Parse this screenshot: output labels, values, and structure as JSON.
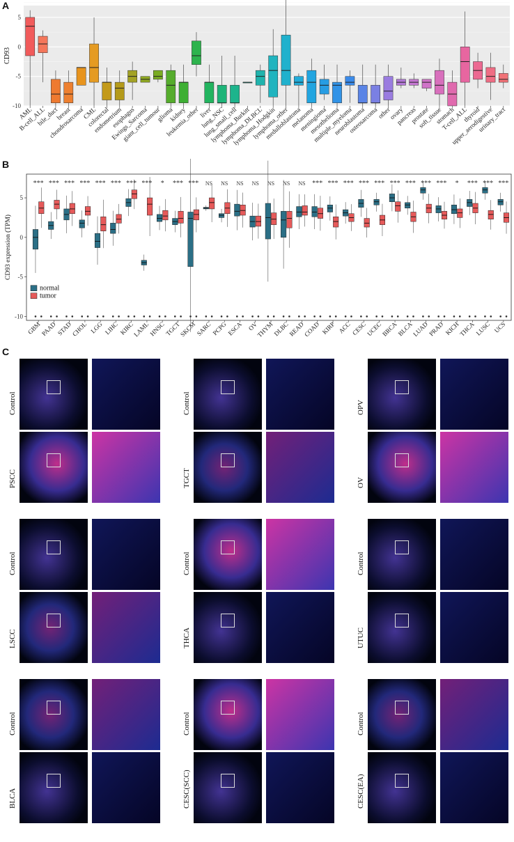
{
  "figure": {
    "panels": [
      "A",
      "B",
      "C"
    ]
  },
  "chart_data": [
    {
      "id": "A",
      "type": "boxplot",
      "ylabel": "CD93",
      "ylim": [
        -10,
        7
      ],
      "yticks": [
        5,
        0,
        -5,
        -10
      ],
      "categories": [
        {
          "name": "AML",
          "q1": -1.5,
          "med": 3.5,
          "q3": 5.0,
          "lo": -10,
          "hi": 6.2,
          "color": "#f15b5b"
        },
        {
          "name": "B-cell_ALL",
          "q1": -1.0,
          "med": 0.5,
          "q3": 1.8,
          "lo": -6.0,
          "hi": 2.8,
          "color": "#f4775b"
        },
        {
          "name": "bile_duct",
          "q1": -9.5,
          "med": -8.0,
          "q3": -5.5,
          "lo": -10,
          "hi": -4.0,
          "color": "#ee7a30"
        },
        {
          "name": "breast",
          "q1": -9.5,
          "med": -8.0,
          "q3": -6.0,
          "lo": -10,
          "hi": -4.0,
          "color": "#ee8030"
        },
        {
          "name": "chondrosarcoma",
          "q1": -6.5,
          "med": -3.5,
          "q3": -3.5,
          "lo": -6.5,
          "hi": -3.5,
          "color": "#e8941e"
        },
        {
          "name": "CML",
          "q1": -6.0,
          "med": -3.5,
          "q3": 0.5,
          "lo": -10,
          "hi": 5.0,
          "color": "#e59b22"
        },
        {
          "name": "colorectal",
          "q1": -9.0,
          "med": -6.0,
          "q3": -6.0,
          "lo": -10,
          "hi": -3.5,
          "color": "#c39a1a"
        },
        {
          "name": "endometrium",
          "q1": -9.0,
          "med": -7.0,
          "q3": -6.0,
          "lo": -10,
          "hi": -4.0,
          "color": "#b49a1a"
        },
        {
          "name": "esophagus",
          "q1": -6.0,
          "med": -5.0,
          "q3": -4.0,
          "lo": -9.0,
          "hi": -2.5,
          "color": "#a3a225"
        },
        {
          "name": "Ewings_Sarcoma",
          "q1": -6.0,
          "med": -5.5,
          "q3": -5.0,
          "lo": -6.0,
          "hi": -5.0,
          "color": "#8fa822"
        },
        {
          "name": "giant_cell_tumour",
          "q1": -5.5,
          "med": -5.0,
          "q3": -4.0,
          "lo": -6.0,
          "hi": -4.0,
          "color": "#7aac22"
        },
        {
          "name": "glioma",
          "q1": -9.5,
          "med": -6.5,
          "q3": -4.0,
          "lo": -10,
          "hi": -3.0,
          "color": "#55ac2c"
        },
        {
          "name": "kidney",
          "q1": -9.5,
          "med": -6.0,
          "q3": -6.0,
          "lo": -10,
          "hi": -3.0,
          "color": "#3eaf34"
        },
        {
          "name": "leukemia_other",
          "q1": -3.0,
          "med": -1.5,
          "q3": 1.0,
          "lo": -5.0,
          "hi": 2.5,
          "color": "#2db34d"
        },
        {
          "name": "liver",
          "q1": -9.5,
          "med": -6.0,
          "q3": -6.0,
          "lo": -10,
          "hi": -3.0,
          "color": "#22b45f"
        },
        {
          "name": "lung_NSC",
          "q1": -9.5,
          "med": -9.5,
          "q3": -6.5,
          "lo": -10,
          "hi": -1.5,
          "color": "#1db478"
        },
        {
          "name": "lung_small_cell",
          "q1": -9.5,
          "med": -9.5,
          "q3": -6.5,
          "lo": -10,
          "hi": -1.5,
          "color": "#1db48c"
        },
        {
          "name": "lymphoma_Burkitt",
          "q1": -6.0,
          "med": -6.0,
          "q3": -6.0,
          "lo": -6.0,
          "hi": -6.0,
          "color": "#1eb39c"
        },
        {
          "name": "lymphoma_DLBCL",
          "q1": -6.5,
          "med": -5.0,
          "q3": -4.0,
          "lo": -9.5,
          "hi": -3.0,
          "color": "#1fb3ad"
        },
        {
          "name": "lymphoma_Hodgkin",
          "q1": -8.5,
          "med": -4.0,
          "q3": -1.5,
          "lo": -10,
          "hi": 3.0,
          "color": "#20b4bf"
        },
        {
          "name": "lymphoma_other",
          "q1": -6.5,
          "med": -4.0,
          "q3": 2.0,
          "lo": -10,
          "hi": 8.0,
          "color": "#20b1cd"
        },
        {
          "name": "medulloblastoma",
          "q1": -6.5,
          "med": -6.0,
          "q3": -5.0,
          "lo": -10,
          "hi": -4.5,
          "color": "#22abd8"
        },
        {
          "name": "melanoma",
          "q1": -9.5,
          "med": -6.0,
          "q3": -4.0,
          "lo": -10,
          "hi": -2.0,
          "color": "#22a5e0"
        },
        {
          "name": "meningioma",
          "q1": -8.0,
          "med": -6.5,
          "q3": -5.5,
          "lo": -9.0,
          "hi": -3.0,
          "color": "#289de3"
        },
        {
          "name": "mesothelioma",
          "q1": -9.5,
          "med": -6.5,
          "q3": -6.0,
          "lo": -10,
          "hi": -3.0,
          "color": "#3193e7"
        },
        {
          "name": "multiple_myeloma",
          "q1": -6.5,
          "med": -6.0,
          "q3": -5.0,
          "lo": -9.5,
          "hi": -4.0,
          "color": "#3a8ae9"
        },
        {
          "name": "neuroblastoma",
          "q1": -9.5,
          "med": -9.5,
          "q3": -6.5,
          "lo": -10,
          "hi": -3.0,
          "color": "#5a84e6"
        },
        {
          "name": "osteosarcoma",
          "q1": -9.5,
          "med": -9.5,
          "q3": -6.5,
          "lo": -10,
          "hi": -3.0,
          "color": "#7a80e3"
        },
        {
          "name": "other",
          "q1": -9.0,
          "med": -7.5,
          "q3": -5.0,
          "lo": -10,
          "hi": -3.0,
          "color": "#9a7ce0"
        },
        {
          "name": "ovary",
          "q1": -6.5,
          "med": -6.0,
          "q3": -5.5,
          "lo": -7.0,
          "hi": -3.5,
          "color": "#b47ad8"
        },
        {
          "name": "pancreas",
          "q1": -6.5,
          "med": -6.0,
          "q3": -5.5,
          "lo": -7.0,
          "hi": -4.5,
          "color": "#c577d2"
        },
        {
          "name": "prostate",
          "q1": -7.0,
          "med": -6.0,
          "q3": -5.5,
          "lo": -7.5,
          "hi": -5.5,
          "color": "#d073c8"
        },
        {
          "name": "soft_tissue",
          "q1": -8.0,
          "med": -6.5,
          "q3": -4.0,
          "lo": -10,
          "hi": -2.0,
          "color": "#d86fbc"
        },
        {
          "name": "stomach",
          "q1": -10,
          "med": -8.0,
          "q3": -6.0,
          "lo": -10,
          "hi": -4.0,
          "color": "#e06aae"
        },
        {
          "name": "T-cell_ALL",
          "q1": -6.0,
          "med": -2.5,
          "q3": 0.0,
          "lo": -10,
          "hi": 6.0,
          "color": "#e766a0"
        },
        {
          "name": "thyroid",
          "q1": -5.5,
          "med": -4.0,
          "q3": -2.5,
          "lo": -7.0,
          "hi": -1.0,
          "color": "#ec6a92"
        },
        {
          "name": "upper_aerodigestive",
          "q1": -6.0,
          "med": -5.0,
          "q3": -3.5,
          "lo": -9.0,
          "hi": -1.0,
          "color": "#ef6d84"
        },
        {
          "name": "urinary_tract",
          "q1": -6.0,
          "med": -5.5,
          "q3": -4.5,
          "lo": -7.0,
          "hi": -3.0,
          "color": "#f07176"
        }
      ]
    },
    {
      "id": "B",
      "type": "boxplot-paired",
      "ylabel": "CD93 expression (TPM)",
      "ylim": [
        -10.5,
        8
      ],
      "yticks": [
        5,
        0,
        -5,
        -10
      ],
      "legend": {
        "position": "bottom-left",
        "entries": [
          {
            "name": "normal",
            "color": "#2b6f86"
          },
          {
            "name": "tumor",
            "color": "#e65a5a"
          }
        ]
      },
      "groups": [
        {
          "name": "GBM",
          "sig": "***",
          "normal": [
            -1.5,
            0,
            1.0
          ],
          "tumor": [
            3.0,
            3.7,
            4.5
          ]
        },
        {
          "name": "PAAD",
          "sig": "***",
          "normal": [
            1.0,
            1.5,
            2.0
          ],
          "tumor": [
            3.6,
            4.2,
            4.7
          ]
        },
        {
          "name": "STAD",
          "sig": "***",
          "normal": [
            2.2,
            2.9,
            3.6
          ],
          "tumor": [
            3.0,
            3.6,
            4.3
          ]
        },
        {
          "name": "CHOL",
          "sig": "***",
          "normal": [
            1.2,
            1.8,
            2.2
          ],
          "tumor": [
            2.8,
            3.3,
            3.9
          ]
        },
        {
          "name": "LGG",
          "sig": "***",
          "normal": [
            -1.3,
            -0.5,
            0.5
          ],
          "tumor": [
            0.8,
            1.6,
            2.6
          ]
        },
        {
          "name": "LIHC",
          "sig": "***",
          "normal": [
            0.5,
            1.0,
            1.8
          ],
          "tumor": [
            1.8,
            2.3,
            2.9
          ]
        },
        {
          "name": "KIRC",
          "sig": "***",
          "normal": [
            3.9,
            4.4,
            4.9
          ],
          "tumor": [
            4.9,
            5.5,
            6.0
          ]
        },
        {
          "name": "LAML",
          "sig": "***",
          "normal": [
            -3.5,
            -3.2,
            -2.9
          ],
          "tumor": [
            2.8,
            4.2,
            5.0
          ]
        },
        {
          "name": "HNSC",
          "sig": "*",
          "normal": [
            2.0,
            2.4,
            2.9
          ],
          "tumor": [
            2.2,
            2.7,
            3.4
          ]
        },
        {
          "name": "TGCT",
          "sig": "***",
          "normal": [
            1.6,
            2.0,
            2.4
          ],
          "tumor": [
            1.8,
            2.4,
            3.3
          ]
        },
        {
          "name": "SKCM",
          "sig": "***",
          "normal": [
            -3.7,
            2.4,
            3.2
          ],
          "tumor": [
            2.2,
            2.9,
            3.5
          ]
        },
        {
          "name": "SARC",
          "sig": "NS",
          "normal": [
            3.6,
            3.7,
            3.8
          ],
          "tumor": [
            3.6,
            4.4,
            5.0
          ]
        },
        {
          "name": "PCPG",
          "sig": "NS",
          "normal": [
            2.5,
            2.8,
            3.0
          ],
          "tumor": [
            3.0,
            3.7,
            4.4
          ]
        },
        {
          "name": "ESCA",
          "sig": "NS",
          "normal": [
            2.7,
            3.3,
            4.2
          ],
          "tumor": [
            2.8,
            3.4,
            4.1
          ]
        },
        {
          "name": "OV",
          "sig": "NS",
          "normal": [
            1.3,
            2.0,
            2.7
          ],
          "tumor": [
            1.4,
            2.0,
            2.7
          ]
        },
        {
          "name": "THYM",
          "sig": "NS",
          "normal": [
            -0.2,
            2.5,
            4.3
          ],
          "tumor": [
            1.6,
            2.3,
            3.1
          ]
        },
        {
          "name": "DLBC",
          "sig": "NS",
          "normal": [
            0.0,
            2.2,
            3.3
          ],
          "tumor": [
            1.2,
            2.4,
            3.3
          ]
        },
        {
          "name": "READ",
          "sig": "NS",
          "normal": [
            2.6,
            3.2,
            3.9
          ],
          "tumor": [
            2.8,
            3.2,
            4.0
          ]
        },
        {
          "name": "COAD",
          "sig": "***",
          "normal": [
            2.6,
            3.2,
            3.9
          ],
          "tumor": [
            2.4,
            3.0,
            3.7
          ]
        },
        {
          "name": "KIRP",
          "sig": "***",
          "normal": [
            3.2,
            3.7,
            4.1
          ],
          "tumor": [
            1.3,
            2.0,
            2.6
          ]
        },
        {
          "name": "ACC",
          "sig": "***",
          "normal": [
            2.7,
            3.1,
            3.5
          ],
          "tumor": [
            2.0,
            2.5,
            3.0
          ]
        },
        {
          "name": "CESC",
          "sig": "***",
          "normal": [
            3.8,
            4.3,
            4.8
          ],
          "tumor": [
            1.3,
            1.8,
            2.4
          ]
        },
        {
          "name": "UCEC",
          "sig": "***",
          "normal": [
            4.1,
            4.5,
            4.8
          ],
          "tumor": [
            1.6,
            2.2,
            2.8
          ]
        },
        {
          "name": "BRCA",
          "sig": "***",
          "normal": [
            4.5,
            5.0,
            5.5
          ],
          "tumor": [
            3.3,
            4.0,
            4.5
          ]
        },
        {
          "name": "BLCA",
          "sig": "***",
          "normal": [
            3.7,
            4.1,
            4.4
          ],
          "tumor": [
            2.0,
            2.6,
            3.2
          ]
        },
        {
          "name": "LUAD",
          "sig": "***",
          "normal": [
            5.6,
            6.0,
            6.3
          ],
          "tumor": [
            3.1,
            3.7,
            4.2
          ]
        },
        {
          "name": "PRAD",
          "sig": "***",
          "normal": [
            3.1,
            3.6,
            4.0
          ],
          "tumor": [
            2.3,
            2.8,
            3.3
          ]
        },
        {
          "name": "KICH",
          "sig": "*",
          "normal": [
            3.0,
            3.5,
            4.1
          ],
          "tumor": [
            2.5,
            3.1,
            3.6
          ]
        },
        {
          "name": "THCA",
          "sig": "***",
          "normal": [
            3.9,
            4.4,
            4.8
          ],
          "tumor": [
            3.1,
            3.7,
            4.3
          ]
        },
        {
          "name": "LUSC",
          "sig": "***",
          "normal": [
            5.6,
            6.0,
            6.3
          ],
          "tumor": [
            2.3,
            2.9,
            3.4
          ]
        },
        {
          "name": "UCS",
          "sig": "***",
          "normal": [
            4.1,
            4.5,
            4.8
          ],
          "tumor": [
            1.9,
            2.5,
            3.1
          ]
        }
      ]
    }
  ],
  "panel_c": {
    "rows": [
      {
        "left": "Control",
        "mid": "Control",
        "right": "OPV",
        "left_glow": "low",
        "mid_glow": "low",
        "right_glow": "low"
      },
      {
        "left": "PSCC",
        "mid": "TGCT",
        "right": "OV",
        "left_glow": "high",
        "mid_glow": "mid",
        "right_glow": "high"
      },
      {
        "left": "Control",
        "mid": "Control",
        "right": "Control",
        "left_glow": "low",
        "mid_glow": "high",
        "right_glow": "low"
      },
      {
        "left": "LSCC",
        "mid": "THCA",
        "right": "UTUC",
        "left_glow": "mid",
        "mid_glow": "low",
        "right_glow": "low"
      },
      {
        "left": "Control",
        "mid": "Control",
        "right": "Control",
        "left_glow": "mid",
        "mid_glow": "high",
        "right_glow": "mid"
      },
      {
        "left": "BLCA",
        "mid": "CESC(SCC)",
        "right": "CESC(EA)",
        "left_glow": "low",
        "mid_glow": "low",
        "right_glow": "low"
      }
    ]
  }
}
